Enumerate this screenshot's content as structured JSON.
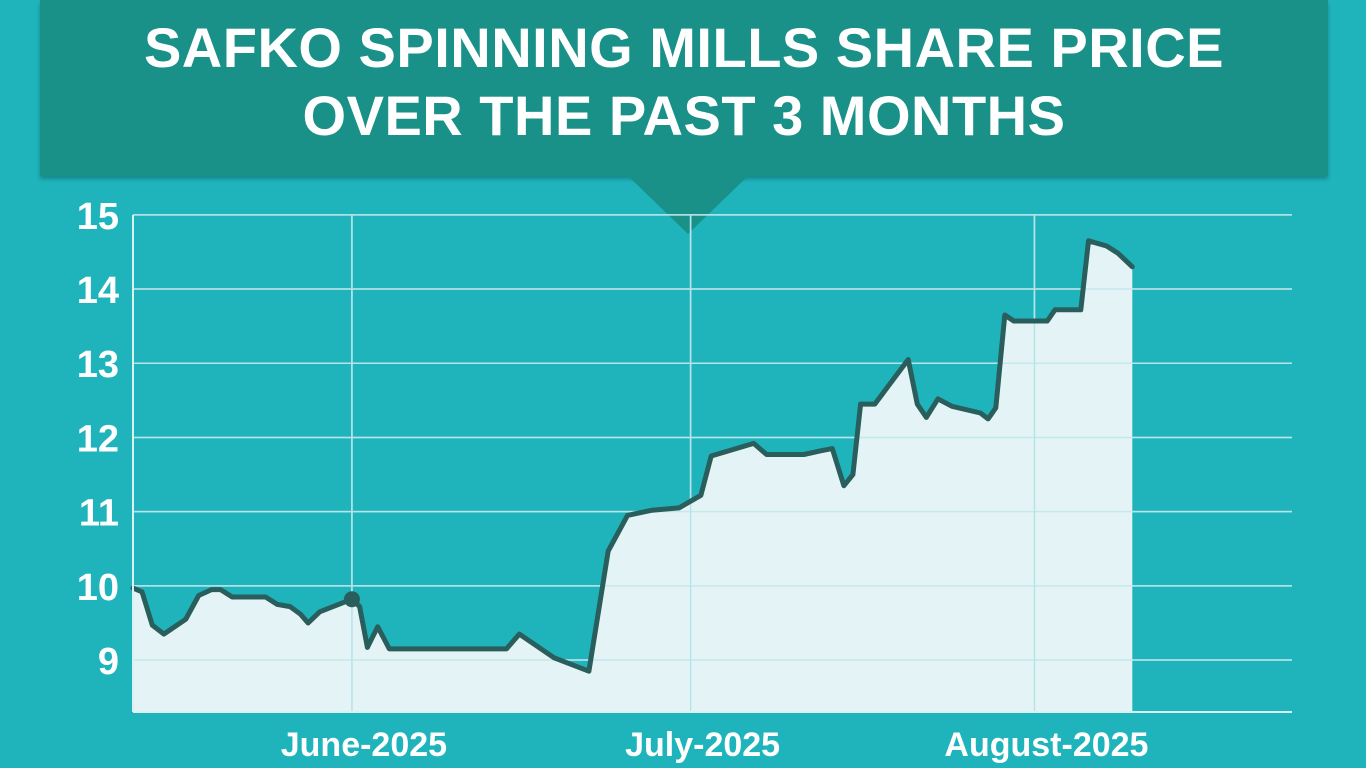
{
  "chart_data": {
    "type": "area",
    "title_lines": [
      "SAFKO SPINNING MILLS SHARE PRICE",
      "OVER THE PAST 3 MONTHS"
    ],
    "xlabel": "",
    "ylabel": "",
    "x_tick_labels": [
      "June-2025",
      "July-2025",
      "August-2025"
    ],
    "y_ticks": [
      9,
      10,
      11,
      12,
      13,
      14,
      15
    ],
    "ylim": [
      8.3,
      15.2
    ],
    "x_range_days": [
      0,
      90
    ],
    "grid": true,
    "legend": "none",
    "x_tick_positions_days": [
      17,
      43.3,
      70
    ],
    "series": [
      {
        "points_day_value": [
          [
            0,
            9.97
          ],
          [
            0.7,
            9.92
          ],
          [
            1.5,
            9.47
          ],
          [
            2.4,
            9.35
          ],
          [
            4.1,
            9.55
          ],
          [
            5.1,
            9.87
          ],
          [
            6.1,
            9.95
          ],
          [
            6.8,
            9.95
          ],
          [
            7.7,
            9.85
          ],
          [
            10.3,
            9.85
          ],
          [
            11.2,
            9.75
          ],
          [
            12.2,
            9.72
          ],
          [
            13.0,
            9.62
          ],
          [
            13.6,
            9.5
          ],
          [
            14.5,
            9.65
          ],
          [
            17.0,
            9.82
          ],
          [
            17.6,
            9.72
          ],
          [
            18.2,
            9.17
          ],
          [
            19.0,
            9.45
          ],
          [
            19.9,
            9.15
          ],
          [
            29.0,
            9.15
          ],
          [
            30.0,
            9.35
          ],
          [
            32.7,
            9.03
          ],
          [
            35.4,
            8.85
          ],
          [
            36.9,
            10.47
          ],
          [
            38.4,
            10.95
          ],
          [
            40.3,
            11.02
          ],
          [
            42.4,
            11.05
          ],
          [
            44.1,
            11.22
          ],
          [
            44.9,
            11.75
          ],
          [
            48.2,
            11.92
          ],
          [
            49.2,
            11.77
          ],
          [
            52.1,
            11.77
          ],
          [
            53.4,
            11.82
          ],
          [
            54.3,
            11.85
          ],
          [
            55.2,
            11.35
          ],
          [
            55.9,
            11.5
          ],
          [
            56.5,
            12.45
          ],
          [
            57.6,
            12.45
          ],
          [
            60.2,
            13.05
          ],
          [
            60.9,
            12.45
          ],
          [
            61.6,
            12.27
          ],
          [
            62.5,
            12.52
          ],
          [
            63.6,
            12.42
          ],
          [
            65.8,
            12.33
          ],
          [
            66.4,
            12.25
          ],
          [
            67.0,
            12.4
          ],
          [
            67.7,
            13.65
          ],
          [
            68.4,
            13.57
          ],
          [
            70.0,
            13.57
          ],
          [
            71.0,
            13.57
          ],
          [
            71.6,
            13.72
          ],
          [
            73.6,
            13.72
          ],
          [
            74.2,
            14.65
          ],
          [
            75.6,
            14.58
          ],
          [
            76.5,
            14.48
          ],
          [
            77.6,
            14.3
          ]
        ],
        "marker_day": 17.0,
        "line_color": "#2a5e5c",
        "fill_color": "#e4f4f6"
      }
    ]
  },
  "colors": {
    "background": "#1fb4bc",
    "banner": "#1a9188",
    "grid": "#b9e6ea",
    "axis_text": "#ffffff"
  }
}
